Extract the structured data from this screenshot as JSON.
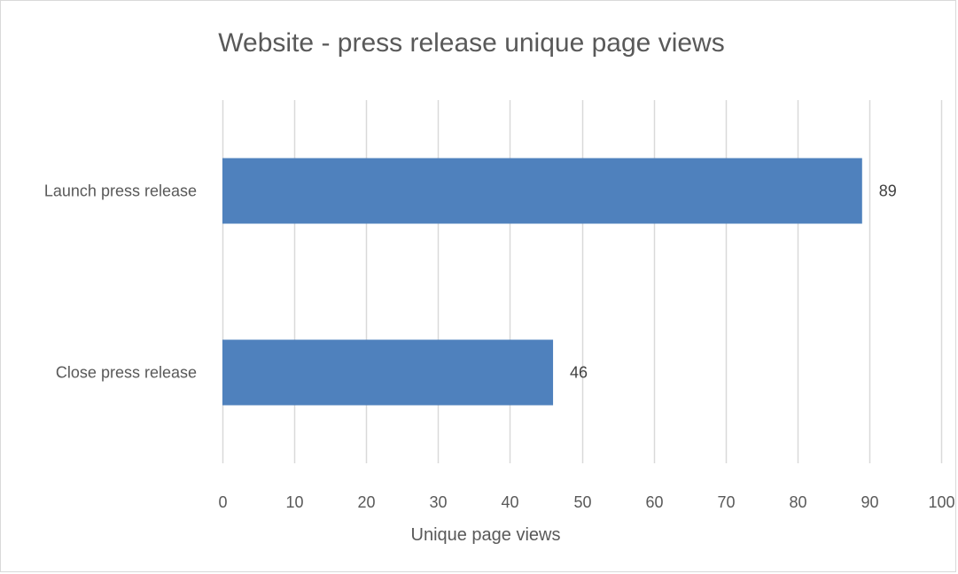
{
  "chart_data": {
    "type": "bar",
    "orientation": "horizontal",
    "title": "Website - press release unique page views",
    "xlabel": "Unique page views",
    "ylabel": "",
    "categories": [
      "Launch press release",
      "Close press release"
    ],
    "values": [
      89,
      46
    ],
    "data_labels": [
      "89",
      "46"
    ],
    "xlim": [
      0,
      100
    ],
    "x_ticks": [
      0,
      10,
      20,
      30,
      40,
      50,
      60,
      70,
      80,
      90,
      100
    ],
    "x_tick_labels": [
      "0",
      "10",
      "20",
      "30",
      "40",
      "50",
      "60",
      "70",
      "80",
      "90",
      "100"
    ],
    "grid": "vertical",
    "legend": "none",
    "bar_color": "#4f81bd",
    "gridline_color": "#d9d9d9"
  }
}
